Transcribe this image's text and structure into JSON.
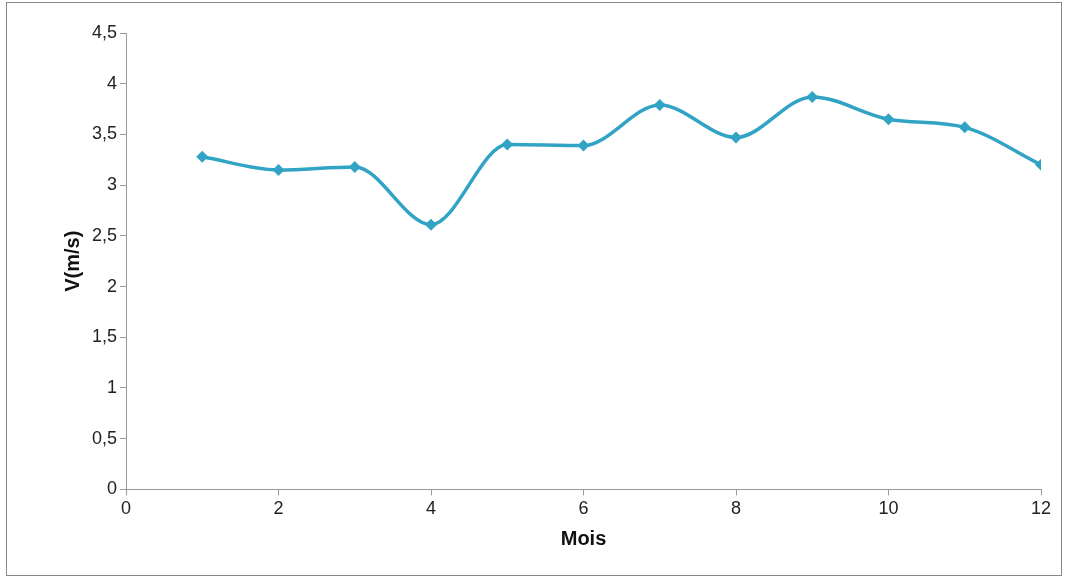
{
  "chart_data": {
    "type": "line",
    "xlabel": "Mois",
    "ylabel": "V(m/s)",
    "x": [
      1,
      2,
      3,
      4,
      5,
      6,
      7,
      8,
      9,
      10,
      11,
      12
    ],
    "series": [
      {
        "color": "#31a3c4",
        "values": [
          3.28,
          3.15,
          3.18,
          2.61,
          3.4,
          3.39,
          3.79,
          3.47,
          3.87,
          3.65,
          3.57,
          3.2
        ]
      }
    ],
    "xlim": [
      0,
      12
    ],
    "xticks": [
      0,
      2,
      4,
      6,
      8,
      10,
      12
    ],
    "ylim": [
      0,
      4.5
    ],
    "yticks": [
      0,
      {
        "value": 0.5,
        "label": "0,5"
      },
      1,
      {
        "value": 1.5,
        "label": "1,5"
      },
      2,
      {
        "value": 2.5,
        "label": "2,5"
      },
      3,
      {
        "value": 3.5,
        "label": "3,5"
      },
      4,
      {
        "value": 4.5,
        "label": "4,5"
      }
    ],
    "grid": false,
    "legend": false,
    "marker": "diamond",
    "line_style": "solid"
  }
}
